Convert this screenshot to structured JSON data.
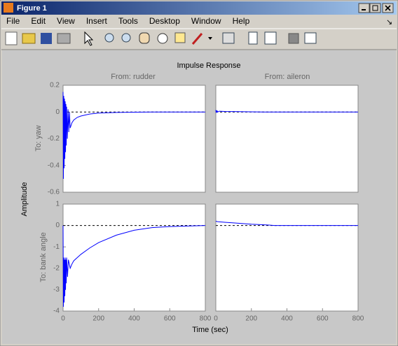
{
  "window": {
    "title": "Figure 1",
    "menu": [
      "File",
      "Edit",
      "View",
      "Insert",
      "Tools",
      "Desktop",
      "Window",
      "Help"
    ]
  },
  "figure": {
    "title": "Impulse Response",
    "xlabel": "Time (sec)",
    "ylabel": "Amplitude",
    "columns": [
      "From: rudder",
      "From: aileron"
    ],
    "rows": [
      "To: yaw",
      "To: bank angle"
    ]
  },
  "chart_data": [
    {
      "type": "line",
      "xlim": [
        0,
        800
      ],
      "ylim": [
        -0.6,
        0.2
      ],
      "yticks": [
        -0.6,
        -0.4,
        -0.2,
        0,
        0.2
      ],
      "x": [
        0,
        2,
        4,
        6,
        8,
        10,
        12,
        14,
        16,
        18,
        20,
        24,
        28,
        32,
        36,
        40,
        50,
        60,
        80,
        100,
        150,
        200,
        300,
        400,
        500,
        800
      ],
      "series": [
        {
          "color": "#0000ff",
          "values": [
            0.15,
            -0.5,
            0.12,
            -0.42,
            0.1,
            -0.35,
            0.08,
            -0.3,
            0.06,
            -0.25,
            0.04,
            -0.2,
            0.02,
            -0.15,
            0,
            -0.12,
            -0.08,
            -0.06,
            -0.04,
            -0.03,
            -0.015,
            -0.008,
            -0.003,
            -0.001,
            0,
            0
          ]
        }
      ]
    },
    {
      "type": "line",
      "xlim": [
        0,
        800
      ],
      "ylim": [
        -0.6,
        0.2
      ],
      "x": [
        0,
        2,
        4,
        6,
        8,
        10,
        20,
        50,
        100,
        200,
        270,
        800
      ],
      "series": [
        {
          "color": "#0000ff",
          "values": [
            0.015,
            -0.005,
            0.012,
            -0.003,
            0.01,
            0,
            0.006,
            0.004,
            0.003,
            0.001,
            0,
            0
          ]
        }
      ]
    },
    {
      "type": "line",
      "xlim": [
        0,
        800
      ],
      "ylim": [
        -4,
        1
      ],
      "yticks": [
        -4,
        -3,
        -2,
        -1,
        0,
        1
      ],
      "xticks": [
        0,
        200,
        400,
        600,
        800
      ],
      "x": [
        0,
        2,
        4,
        6,
        8,
        10,
        12,
        14,
        16,
        18,
        20,
        25,
        30,
        40,
        50,
        60,
        80,
        100,
        150,
        200,
        300,
        400,
        500,
        600,
        800
      ],
      "series": [
        {
          "color": "#0000ff",
          "values": [
            0,
            -3.8,
            -1.5,
            -3.6,
            -1.6,
            -3.3,
            -1.5,
            -3.0,
            -1.6,
            -2.7,
            -1.5,
            -2.4,
            -1.6,
            -2.0,
            -1.8,
            -1.65,
            -1.5,
            -1.35,
            -1.05,
            -0.8,
            -0.45,
            -0.22,
            -0.1,
            -0.05,
            0
          ]
        }
      ]
    },
    {
      "type": "line",
      "xlim": [
        0,
        800
      ],
      "ylim": [
        -4,
        1
      ],
      "xticks": [
        0,
        200,
        400,
        600,
        800
      ],
      "x": [
        0,
        10,
        50,
        100,
        200,
        300,
        330,
        800
      ],
      "series": [
        {
          "color": "#0000ff",
          "values": [
            0.2,
            0.18,
            0.15,
            0.12,
            0.06,
            0.02,
            0,
            0
          ]
        }
      ]
    }
  ]
}
